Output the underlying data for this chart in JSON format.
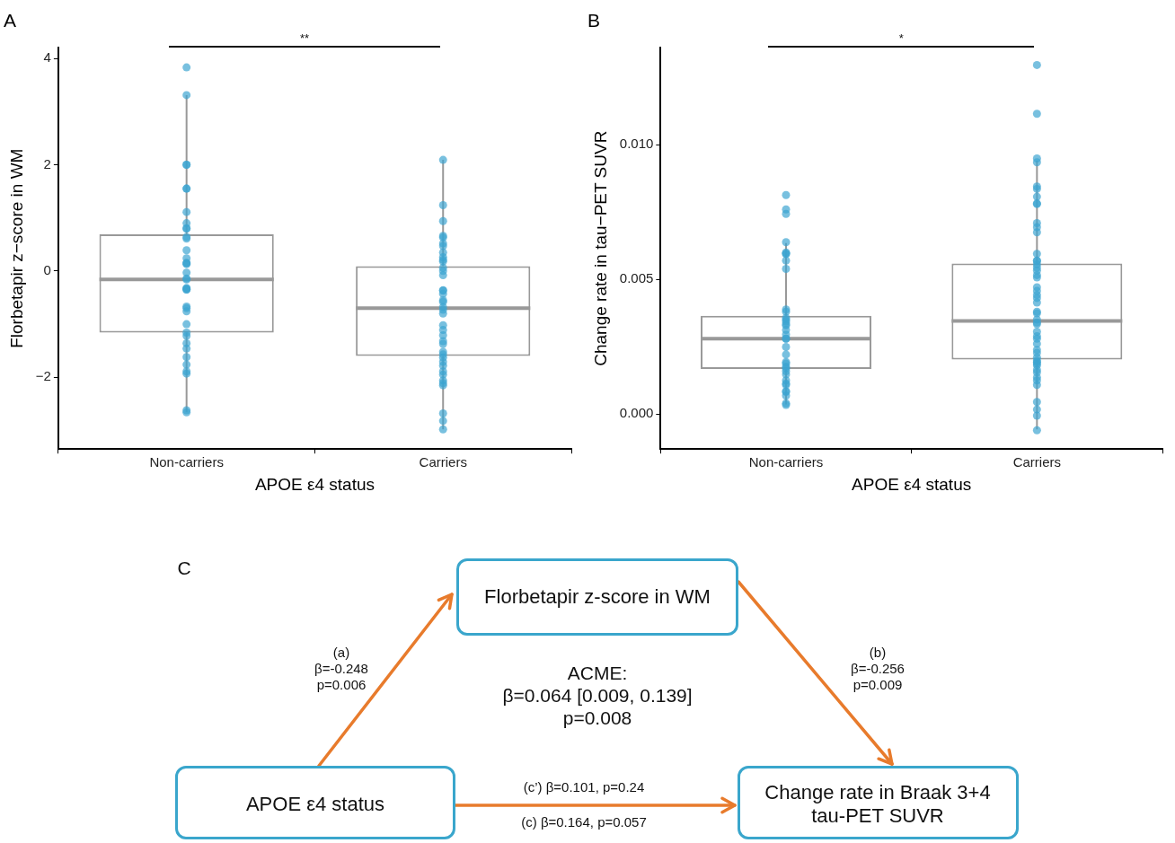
{
  "chart_data": [
    {
      "type": "box",
      "title": "A",
      "xlabel": "APOE ε4 status",
      "ylabel": "Florbetapir z−score in WM",
      "categories": [
        "Non-carriers",
        "Carriers"
      ],
      "ylim": [
        -3.35,
        4.2
      ],
      "yticks": [
        {
          "value": -2,
          "label": "−2"
        },
        0,
        2,
        4
      ],
      "annotations": [
        "**"
      ],
      "series": [
        {
          "type": "box",
          "color": "#999999",
          "boxes": [
            {
              "low": -2.66,
              "q1": -1.16,
              "median": -0.16,
              "q3": 0.69,
              "high": 3.31
            },
            {
              "low": -2.98,
              "q1": -1.6,
              "median": -0.7,
              "q3": 0.09,
              "high": 2.09
            }
          ]
        },
        {
          "type": "scatter",
          "color": "#3ba3d0",
          "x": [
            "Non-carriers",
            "Non-carriers",
            "Non-carriers",
            "Non-carriers",
            "Non-carriers",
            "Non-carriers",
            "Non-carriers",
            "Non-carriers",
            "Non-carriers",
            "Non-carriers",
            "Non-carriers",
            "Non-carriers",
            "Non-carriers",
            "Non-carriers",
            "Non-carriers",
            "Non-carriers",
            "Non-carriers",
            "Non-carriers",
            "Non-carriers",
            "Non-carriers",
            "Non-carriers",
            "Non-carriers",
            "Non-carriers",
            "Non-carriers",
            "Non-carriers",
            "Non-carriers",
            "Non-carriers",
            "Non-carriers",
            "Non-carriers",
            "Non-carriers",
            "Non-carriers",
            "Non-carriers",
            "Non-carriers",
            "Non-carriers",
            "Non-carriers",
            "Non-carriers",
            "Non-carriers",
            "Non-carriers",
            "Carriers",
            "Carriers",
            "Carriers",
            "Carriers",
            "Carriers",
            "Carriers",
            "Carriers",
            "Carriers",
            "Carriers",
            "Carriers",
            "Carriers",
            "Carriers",
            "Carriers",
            "Carriers",
            "Carriers",
            "Carriers",
            "Carriers",
            "Carriers",
            "Carriers",
            "Carriers",
            "Carriers",
            "Carriers",
            "Carriers",
            "Carriers",
            "Carriers",
            "Carriers",
            "Carriers",
            "Carriers",
            "Carriers",
            "Carriers",
            "Carriers",
            "Carriers",
            "Carriers",
            "Carriers",
            "Carriers",
            "Carriers",
            "Carriers",
            "Carriers",
            "Carriers",
            "Carriers"
          ],
          "values": [
            3.83,
            3.31,
            2.0,
            2.0,
            1.55,
            1.55,
            1.11,
            0.9,
            0.8,
            0.8,
            0.64,
            0.61,
            0.39,
            0.24,
            0.15,
            0.15,
            0.13,
            -0.03,
            -0.14,
            -0.16,
            -0.33,
            -0.35,
            -0.35,
            -0.32,
            -0.67,
            -0.7,
            -0.76,
            -1.0,
            -1.16,
            -1.22,
            -1.36,
            -1.46,
            -1.62,
            -1.76,
            -1.89,
            -1.93,
            -2.62,
            -2.66,
            2.09,
            1.24,
            0.94,
            0.66,
            0.63,
            0.52,
            0.47,
            0.35,
            0.26,
            0.21,
            0.18,
            0.06,
            0.0,
            -0.08,
            -0.36,
            -0.37,
            -0.43,
            -0.55,
            -0.58,
            -0.68,
            -0.73,
            -0.8,
            -1.02,
            -1.11,
            -1.21,
            -1.32,
            -1.37,
            -1.52,
            -1.57,
            -1.63,
            -1.71,
            -1.78,
            -1.89,
            -1.95,
            -2.06,
            -2.11,
            -2.15,
            -2.68,
            -2.82,
            -2.98
          ]
        }
      ]
    },
    {
      "type": "box",
      "title": "B",
      "xlabel": "APOE ε4 status",
      "ylabel": "Change rate in tau−PET SUVR",
      "categories": [
        "Non-carriers",
        "Carriers"
      ],
      "ylim": [
        -0.0013,
        0.0136
      ],
      "yticks": [
        {
          "value": 0,
          "label": "0.000"
        },
        0.005,
        {
          "value": 0.01,
          "label": "0.010"
        }
      ],
      "annotations": [
        "*"
      ],
      "series": [
        {
          "type": "box",
          "color": "#999999",
          "boxes": [
            {
              "low": 0.00036,
              "q1": 0.00167,
              "median": 0.0028,
              "q3": 0.00365,
              "high": 0.00635
            },
            {
              "low": -0.00057,
              "q1": 0.00202,
              "median": 0.00346,
              "q3": 0.00559,
              "high": 0.00941
            }
          ]
        },
        {
          "type": "scatter",
          "color": "#3ba3d0",
          "x": [
            "Non-carriers",
            "Non-carriers",
            "Non-carriers",
            "Non-carriers",
            "Non-carriers",
            "Non-carriers",
            "Non-carriers",
            "Non-carriers",
            "Non-carriers",
            "Non-carriers",
            "Non-carriers",
            "Non-carriers",
            "Non-carriers",
            "Non-carriers",
            "Non-carriers",
            "Non-carriers",
            "Non-carriers",
            "Non-carriers",
            "Non-carriers",
            "Non-carriers",
            "Non-carriers",
            "Non-carriers",
            "Non-carriers",
            "Non-carriers",
            "Non-carriers",
            "Non-carriers",
            "Non-carriers",
            "Non-carriers",
            "Non-carriers",
            "Non-carriers",
            "Non-carriers",
            "Non-carriers",
            "Non-carriers",
            "Non-carriers",
            "Non-carriers",
            "Non-carriers",
            "Carriers",
            "Carriers",
            "Carriers",
            "Carriers",
            "Carriers",
            "Carriers",
            "Carriers",
            "Carriers",
            "Carriers",
            "Carriers",
            "Carriers",
            "Carriers",
            "Carriers",
            "Carriers",
            "Carriers",
            "Carriers",
            "Carriers",
            "Carriers",
            "Carriers",
            "Carriers",
            "Carriers",
            "Carriers",
            "Carriers",
            "Carriers",
            "Carriers",
            "Carriers",
            "Carriers",
            "Carriers",
            "Carriers",
            "Carriers",
            "Carriers",
            "Carriers",
            "Carriers",
            "Carriers",
            "Carriers",
            "Carriers",
            "Carriers",
            "Carriers",
            "Carriers",
            "Carriers",
            "Carriers",
            "Carriers",
            "Carriers",
            "Carriers",
            "Carriers",
            "Carriers",
            "Carriers",
            "Carriers",
            "Carriers",
            "Carriers"
          ],
          "values": [
            0.00813,
            0.0076,
            0.00743,
            0.00638,
            0.00595,
            0.00595,
            0.006,
            0.0057,
            0.00539,
            0.00388,
            0.0038,
            0.00357,
            0.00351,
            0.00344,
            0.00334,
            0.00329,
            0.00312,
            0.00295,
            0.0028,
            0.0028,
            0.00249,
            0.00221,
            0.00193,
            0.00187,
            0.00176,
            0.0017,
            0.00159,
            0.00147,
            0.00125,
            0.00113,
            0.00108,
            0.00085,
            0.00082,
            0.00068,
            0.0004,
            0.00034,
            0.01296,
            0.01115,
            0.00949,
            0.00935,
            0.00845,
            0.00836,
            0.00807,
            0.00782,
            0.0078,
            0.00709,
            0.00694,
            0.00675,
            0.00595,
            0.0057,
            0.00568,
            0.00556,
            0.00544,
            0.00533,
            0.00516,
            0.00507,
            0.00471,
            0.00457,
            0.00442,
            0.00431,
            0.00414,
            0.0038,
            0.00374,
            0.00351,
            0.0034,
            0.00334,
            0.00306,
            0.00289,
            0.0028,
            0.00261,
            0.00238,
            0.00227,
            0.0021,
            0.00198,
            0.00193,
            0.00187,
            0.00181,
            0.00164,
            0.00155,
            0.00136,
            0.00125,
            0.00108,
            0.00045,
            0.00017,
            -6e-05,
            -0.0006
          ]
        }
      ]
    },
    {
      "type": "other",
      "title": "C",
      "annotations": [
        "Florbetapir z-score in WM",
        "APOE ε4 status",
        "Change rate in Braak 3+4\ntau-PET SUVR",
        "(a)\nβ=-0.248\np=0.006",
        "(b)\nβ=-0.256\np=0.009",
        "ACME:\nβ=0.064 [0.009, 0.139]\np=0.008",
        "(c’) β=0.101, p=0.24",
        "(c) β=0.164, p=0.057"
      ]
    }
  ]
}
